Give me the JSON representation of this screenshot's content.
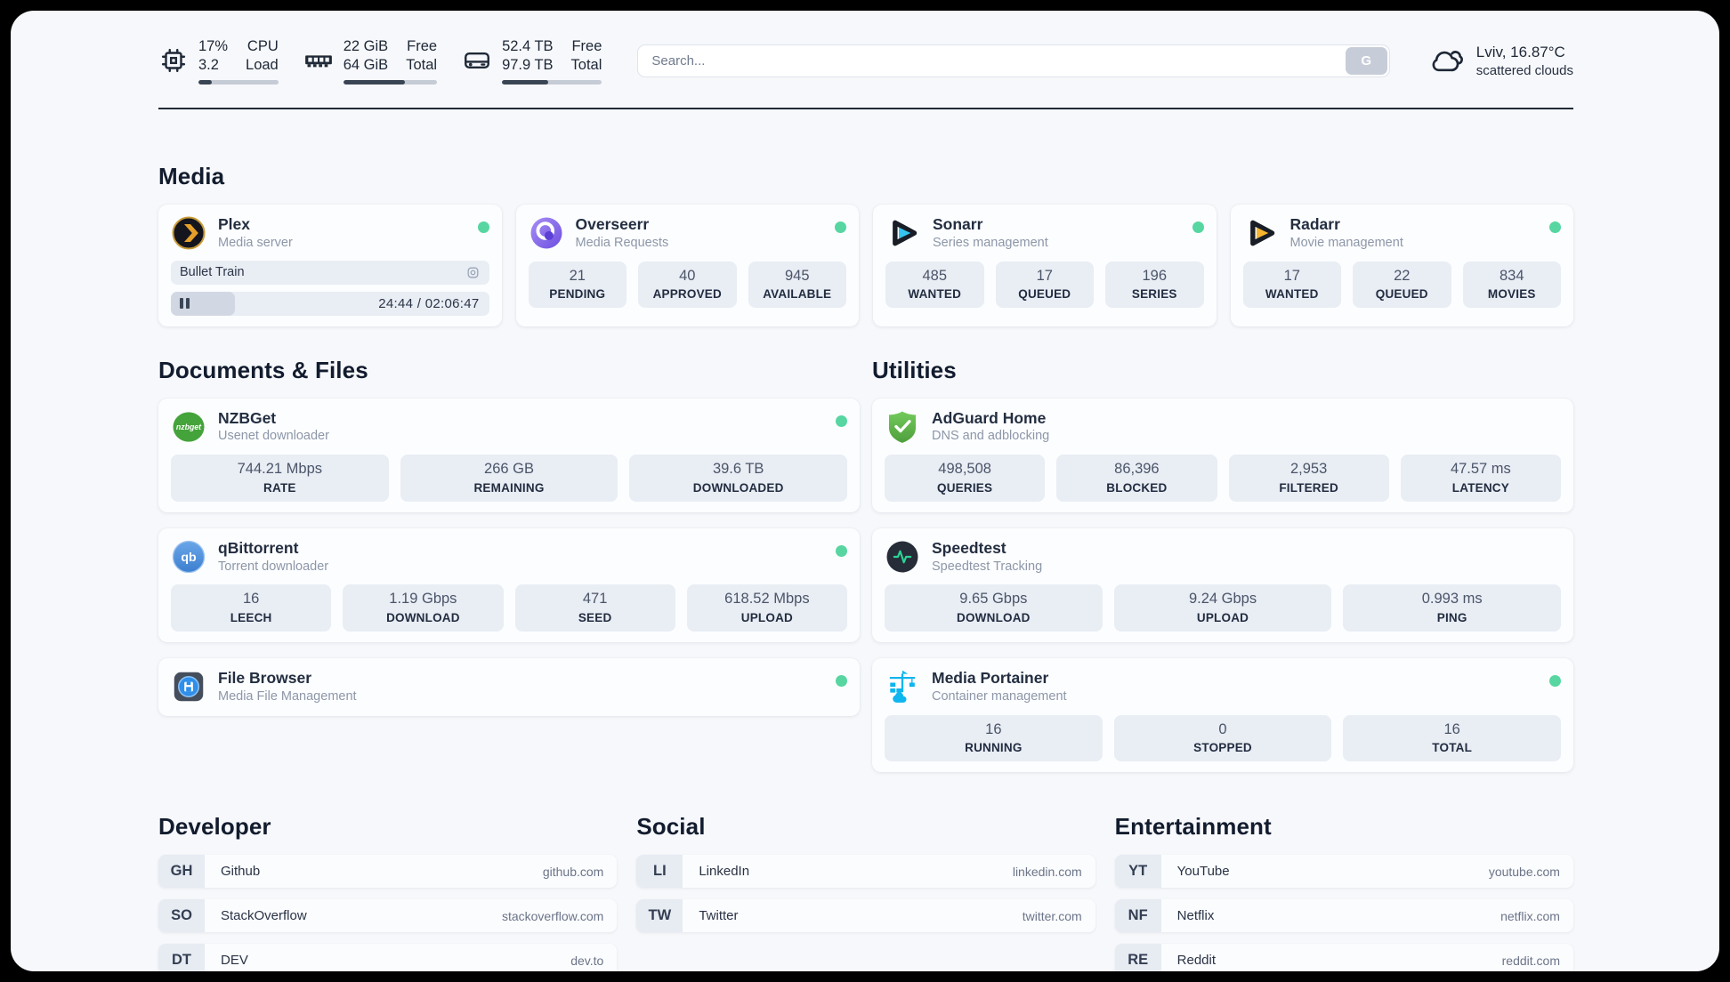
{
  "colors": {
    "status_online": "#57d6a1",
    "panel_background": "#f7f8fb",
    "card_background": "#fcfdff",
    "stat_background": "#e9edf4",
    "progress_fill": "#3a4554"
  },
  "header": {
    "widgets": [
      {
        "id": "cpu",
        "icon": "cpu",
        "col1": [
          "17%",
          "3.2"
        ],
        "col2": [
          "CPU",
          "Load"
        ],
        "progress_pct": 17
      },
      {
        "id": "memory",
        "icon": "memory",
        "col1": [
          "22 GiB",
          "64 GiB"
        ],
        "col2": [
          "Free",
          "Total"
        ],
        "progress_pct": 66
      },
      {
        "id": "disk",
        "icon": "disk",
        "col1": [
          "52.4 TB",
          "97.9 TB"
        ],
        "col2": [
          "Free",
          "Total"
        ],
        "progress_pct": 46
      }
    ],
    "search": {
      "placeholder": "Search...",
      "button": "G"
    },
    "weather": {
      "title": "Lviv, 16.87°C",
      "subtitle": "scattered clouds"
    }
  },
  "services": {
    "media": {
      "title": "Media",
      "cards": [
        {
          "slug": "plex",
          "name": "Plex",
          "description": "Media server",
          "online": true,
          "media": {
            "title": "Bullet Train",
            "time": "24:44 / 02:06:47",
            "state": "paused",
            "progress_pct": 20
          },
          "stats": []
        },
        {
          "slug": "overseerr",
          "name": "Overseerr",
          "description": "Media Requests",
          "online": true,
          "stats": [
            {
              "value": "21",
              "label": "PENDING"
            },
            {
              "value": "40",
              "label": "APPROVED"
            },
            {
              "value": "945",
              "label": "AVAILABLE"
            }
          ]
        },
        {
          "slug": "sonarr",
          "name": "Sonarr",
          "description": "Series management",
          "online": true,
          "stats": [
            {
              "value": "485",
              "label": "WANTED"
            },
            {
              "value": "17",
              "label": "QUEUED"
            },
            {
              "value": "196",
              "label": "SERIES"
            }
          ]
        },
        {
          "slug": "radarr",
          "name": "Radarr",
          "description": "Movie management",
          "online": true,
          "stats": [
            {
              "value": "17",
              "label": "WANTED"
            },
            {
              "value": "22",
              "label": "QUEUED"
            },
            {
              "value": "834",
              "label": "MOVIES"
            }
          ]
        }
      ]
    },
    "documents": {
      "title": "Documents & Files",
      "cards": [
        {
          "slug": "nzbget",
          "name": "NZBGet",
          "description": "Usenet downloader",
          "online": true,
          "stats": [
            {
              "value": "744.21 Mbps",
              "label": "RATE"
            },
            {
              "value": "266 GB",
              "label": "REMAINING"
            },
            {
              "value": "39.6 TB",
              "label": "DOWNLOADED"
            }
          ]
        },
        {
          "slug": "qbittorrent",
          "name": "qBittorrent",
          "description": "Torrent downloader",
          "online": true,
          "stats": [
            {
              "value": "16",
              "label": "LEECH"
            },
            {
              "value": "1.19 Gbps",
              "label": "DOWNLOAD"
            },
            {
              "value": "471",
              "label": "SEED"
            },
            {
              "value": "618.52 Mbps",
              "label": "UPLOAD"
            }
          ]
        },
        {
          "slug": "filebrowser",
          "name": "File Browser",
          "description": "Media File Management",
          "online": true,
          "stats": []
        }
      ]
    },
    "utilities": {
      "title": "Utilities",
      "cards": [
        {
          "slug": "adguard",
          "name": "AdGuard Home",
          "description": "DNS and adblocking",
          "online": false,
          "stats": [
            {
              "value": "498,508",
              "label": "QUERIES"
            },
            {
              "value": "86,396",
              "label": "BLOCKED"
            },
            {
              "value": "2,953",
              "label": "FILTERED"
            },
            {
              "value": "47.57 ms",
              "label": "LATENCY"
            }
          ]
        },
        {
          "slug": "speedtest",
          "name": "Speedtest",
          "description": "Speedtest Tracking",
          "online": false,
          "stats": [
            {
              "value": "9.65 Gbps",
              "label": "DOWNLOAD"
            },
            {
              "value": "9.24 Gbps",
              "label": "UPLOAD"
            },
            {
              "value": "0.993 ms",
              "label": "PING"
            }
          ]
        },
        {
          "slug": "portainer",
          "name": "Media Portainer",
          "description": "Container management",
          "online": true,
          "stats": [
            {
              "value": "16",
              "label": "RUNNING"
            },
            {
              "value": "0",
              "label": "STOPPED"
            },
            {
              "value": "16",
              "label": "TOTAL"
            }
          ]
        }
      ]
    }
  },
  "bookmarks": [
    {
      "title": "Developer",
      "items": [
        {
          "abbr": "GH",
          "label": "Github",
          "url": "github.com"
        },
        {
          "abbr": "SO",
          "label": "StackOverflow",
          "url": "stackoverflow.com"
        },
        {
          "abbr": "DT",
          "label": "DEV",
          "url": "dev.to"
        }
      ]
    },
    {
      "title": "Social",
      "items": [
        {
          "abbr": "LI",
          "label": "LinkedIn",
          "url": "linkedin.com"
        },
        {
          "abbr": "TW",
          "label": "Twitter",
          "url": "twitter.com"
        }
      ]
    },
    {
      "title": "Entertainment",
      "items": [
        {
          "abbr": "YT",
          "label": "YouTube",
          "url": "youtube.com"
        },
        {
          "abbr": "NF",
          "label": "Netflix",
          "url": "netflix.com"
        },
        {
          "abbr": "RE",
          "label": "Reddit",
          "url": "reddit.com"
        }
      ]
    }
  ]
}
